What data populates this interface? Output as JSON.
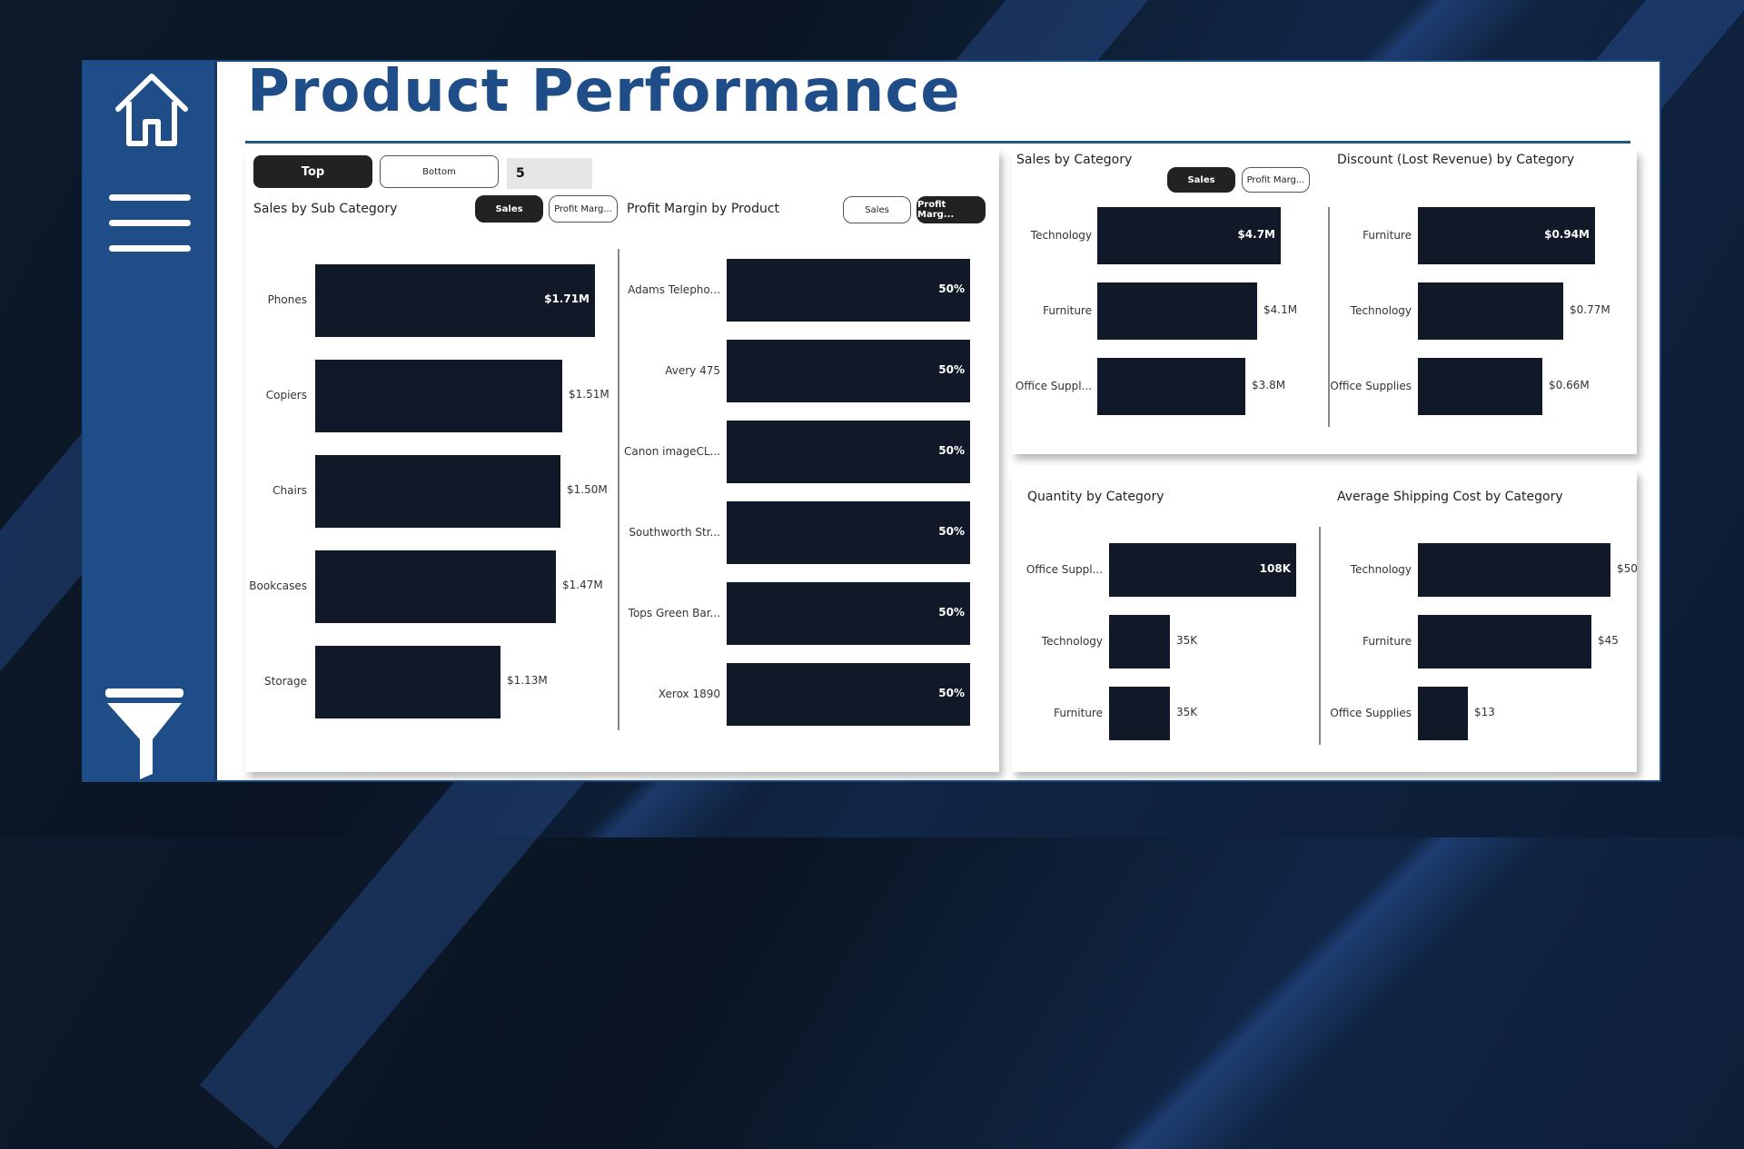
{
  "page": {
    "title": "Product Performance"
  },
  "sidebar": {
    "items": [
      "home-icon",
      "menu-icon",
      "filter-icon"
    ]
  },
  "selector": {
    "top_label": "Top",
    "bottom_label": "Bottom",
    "n_value": "5"
  },
  "panel_subcat": {
    "title": "Sales by Sub Category",
    "toggle_sales": "Sales",
    "toggle_profit": "Profit Marg..."
  },
  "panel_product": {
    "title": "Profit Margin by Product",
    "toggle_sales": "Sales",
    "toggle_profit": "Profit Marg..."
  },
  "panel_category": {
    "title": "Sales by Category",
    "toggle_sales": "Sales",
    "toggle_profit": "Profit Marg..."
  },
  "panel_discount": {
    "title": "Discount (Lost Revenue) by Category"
  },
  "panel_quantity": {
    "title": "Quantity by Category"
  },
  "panel_shipping": {
    "title": "Average Shipping Cost by Category"
  },
  "chart_data": [
    {
      "type": "bar",
      "orientation": "horizontal",
      "title": "Sales by Sub Category",
      "categories": [
        "Phones",
        "Copiers",
        "Chairs",
        "Bookcases",
        "Storage"
      ],
      "values": [
        1.71,
        1.51,
        1.5,
        1.47,
        1.13
      ],
      "labels": [
        "$1.71M",
        "$1.51M",
        "$1.50M",
        "$1.47M",
        "$1.13M"
      ]
    },
    {
      "type": "bar",
      "orientation": "horizontal",
      "title": "Profit Margin by Product",
      "categories": [
        "Adams Telepho...",
        "Avery 475",
        "Canon imageCL...",
        "Southworth Str...",
        "Tops Green Bar...",
        "Xerox 1890"
      ],
      "values": [
        50,
        50,
        50,
        50,
        50,
        50
      ],
      "labels": [
        "50%",
        "50%",
        "50%",
        "50%",
        "50%",
        "50%"
      ]
    },
    {
      "type": "bar",
      "orientation": "horizontal",
      "title": "Sales by Category",
      "categories": [
        "Technology",
        "Furniture",
        "Office Suppl..."
      ],
      "values": [
        4.7,
        4.1,
        3.8
      ],
      "labels": [
        "$4.7M",
        "$4.1M",
        "$3.8M"
      ]
    },
    {
      "type": "bar",
      "orientation": "horizontal",
      "title": "Discount (Lost Revenue) by Category",
      "categories": [
        "Furniture",
        "Technology",
        "Office Supplies"
      ],
      "values": [
        0.94,
        0.77,
        0.66
      ],
      "labels": [
        "$0.94M",
        "$0.77M",
        "$0.66M"
      ]
    },
    {
      "type": "bar",
      "orientation": "horizontal",
      "title": "Quantity by Category",
      "categories": [
        "Office Suppl...",
        "Technology",
        "Furniture"
      ],
      "values": [
        108,
        35,
        35
      ],
      "labels": [
        "108K",
        "35K",
        "35K"
      ]
    },
    {
      "type": "bar",
      "orientation": "horizontal",
      "title": "Average Shipping Cost by Category",
      "categories": [
        "Technology",
        "Furniture",
        "Office Supplies"
      ],
      "values": [
        50,
        45,
        13
      ],
      "labels": [
        "$50",
        "$45",
        "$13"
      ]
    }
  ],
  "colors": {
    "bar": "#111827",
    "sidebar": "#1f4d87",
    "title": "#1f4d87",
    "accent_rule": "#1d5c7c"
  }
}
